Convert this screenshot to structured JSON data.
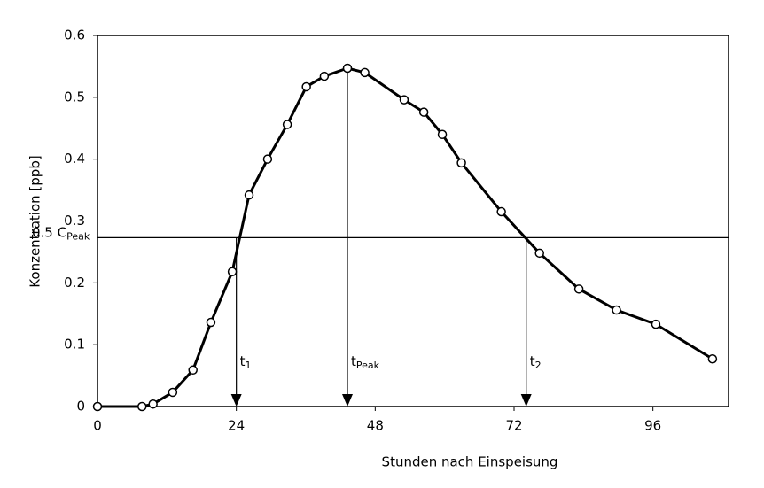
{
  "chart_data": {
    "type": "line",
    "xlabel": "Stunden nach Einspeisung",
    "ylabel": "Konzentration [ppb]",
    "x": [
      0,
      7.7,
      9.6,
      13,
      16.5,
      19.6,
      23.3,
      26.2,
      29.4,
      32.8,
      36.1,
      39.2,
      43.2,
      46.2,
      53,
      56.4,
      59.6,
      62.9,
      69.8,
      76.4,
      83.2,
      89.7,
      96.5,
      106.3
    ],
    "series": [
      {
        "color": "#000000",
        "values": [
          0,
          0,
          0.004,
          0.023,
          0.059,
          0.136,
          0.218,
          0.342,
          0.4,
          0.456,
          0.517,
          0.534,
          0.547,
          0.54,
          0.496,
          0.476,
          0.44,
          0.394,
          0.315,
          0.248,
          0.19,
          0.156,
          0.133,
          0.077
        ]
      }
    ],
    "xlim": [
      0,
      108
    ],
    "ylim": [
      0,
      0.6
    ],
    "xticks": [
      0,
      24,
      48,
      72,
      96
    ],
    "yticks": [
      0,
      0.1,
      0.2,
      0.3,
      0.4,
      0.5,
      0.6
    ],
    "hline": {
      "y": 0.273,
      "label": {
        "base": "0.5 C",
        "sub": "Peak"
      }
    },
    "arrows": [
      {
        "x": 24,
        "y": 0.273,
        "label": {
          "base": "t",
          "sub": "1"
        }
      },
      {
        "x": 43.2,
        "y": 0.547,
        "label": {
          "base": "t",
          "sub": "Peak"
        }
      },
      {
        "x": 74.1,
        "y": 0.273,
        "label": {
          "base": "t",
          "sub": "2"
        }
      }
    ]
  }
}
